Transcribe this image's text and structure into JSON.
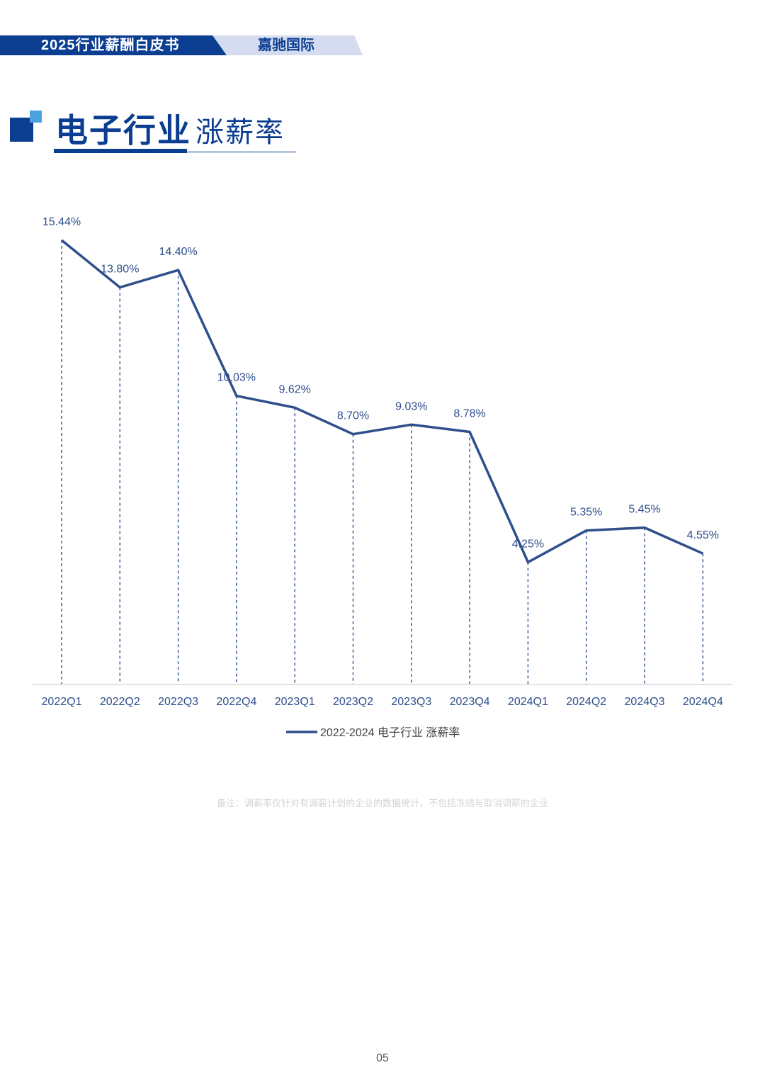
{
  "header": {
    "left_label": "2025行业薪酬白皮书",
    "right_label": "嘉驰国际"
  },
  "title": {
    "main": "电子行业",
    "sub": "涨薪率"
  },
  "chart_data": {
    "type": "line",
    "categories": [
      "2022Q1",
      "2022Q2",
      "2022Q3",
      "2022Q4",
      "2023Q1",
      "2023Q2",
      "2023Q3",
      "2023Q4",
      "2024Q1",
      "2024Q2",
      "2024Q3",
      "2024Q4"
    ],
    "series": [
      {
        "name": "2022-2024 电子行业 涨薪率",
        "values": [
          15.44,
          13.8,
          14.4,
          10.03,
          9.62,
          8.7,
          9.03,
          8.78,
          4.25,
          5.35,
          5.45,
          4.55
        ],
        "labels": [
          "15.44%",
          "13.80%",
          "14.40%",
          "10.03%",
          "9.62%",
          "8.70%",
          "9.03%",
          "8.78%",
          "4.25%",
          "5.35%",
          "5.45%",
          "4.55%"
        ]
      }
    ],
    "ylim": [
      0,
      15.44
    ],
    "legend": "bottom",
    "grid": false,
    "drop_lines": true,
    "line_color": "#2e4f8c",
    "axis_color": "#d9d9d9",
    "tick_color": "#2e4f8c"
  },
  "footer": {
    "note": "备注：调薪率仅针对有调薪计划的企业的数据统计，不包括冻结与取消调薪的企业",
    "page_number": "05"
  }
}
